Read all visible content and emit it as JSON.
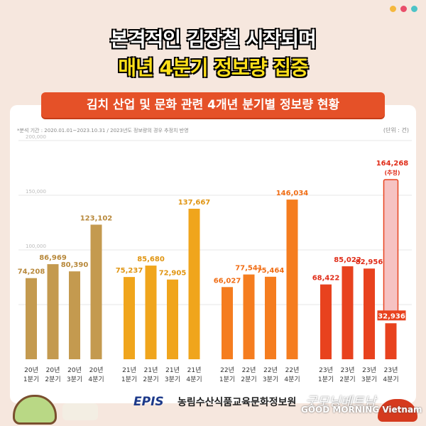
{
  "colors": {
    "dot1": "#f5b83d",
    "dot2": "#e94e6a",
    "dot3": "#4ec3c7"
  },
  "headline": {
    "line1": "본격적인 김장철 시작되며",
    "line2": "매년 4분기 정보량 집중"
  },
  "banner": "김치 산업 및 문화 관련 4개년 분기별 정보량 현황",
  "footer": {
    "logo": "EPIS",
    "org": "농림수산식품교육문화정보원",
    "watermark1": "굿모닝베트남",
    "watermark2": "GOOD MORNING Vietnam"
  },
  "chart_data": {
    "type": "bar",
    "note": "*분석 기간 : 2020.01.01~2023.10.31 / 2023년도 정보량의 경우 추정치 반영",
    "unit": "(단위 : 건)",
    "ylim": [
      0,
      200000
    ],
    "yticks": [
      "200,000",
      "150,000",
      "100,000"
    ],
    "grid": true,
    "categories": [
      [
        "20년",
        "1분기"
      ],
      [
        "20년",
        "2분기"
      ],
      [
        "20년",
        "3분기"
      ],
      [
        "20년",
        "4분기"
      ],
      [
        "21년",
        "1분기"
      ],
      [
        "21년",
        "2분기"
      ],
      [
        "21년",
        "3분기"
      ],
      [
        "21년",
        "4분기"
      ],
      [
        "22년",
        "1분기"
      ],
      [
        "22년",
        "2분기"
      ],
      [
        "22년",
        "3분기"
      ],
      [
        "22년",
        "4분기"
      ],
      [
        "23년",
        "1분기"
      ],
      [
        "23년",
        "2분기"
      ],
      [
        "23년",
        "3분기"
      ],
      [
        "23년",
        "4분기"
      ]
    ],
    "values": [
      74208,
      86969,
      80390,
      123102,
      75237,
      85680,
      72905,
      137667,
      66027,
      77541,
      75464,
      146034,
      68422,
      85022,
      82956,
      32936
    ],
    "labels": [
      "74,208",
      "86,969",
      "80,390",
      "123,102",
      "75,237",
      "85,680",
      "72,905",
      "137,667",
      "66,027",
      "77,541",
      "75,464",
      "146,034",
      "68,422",
      "85,022",
      "82,956",
      "32,936"
    ],
    "estimate": {
      "value": 164268,
      "label": "164,268",
      "tag": "(추정)"
    },
    "group_colors": [
      "#c49a4f",
      "#f0a51c",
      "#f57d1f",
      "#e8421e"
    ],
    "label_colors": [
      "#b8893c",
      "#e09512",
      "#f06d14",
      "#e02c18"
    ]
  }
}
